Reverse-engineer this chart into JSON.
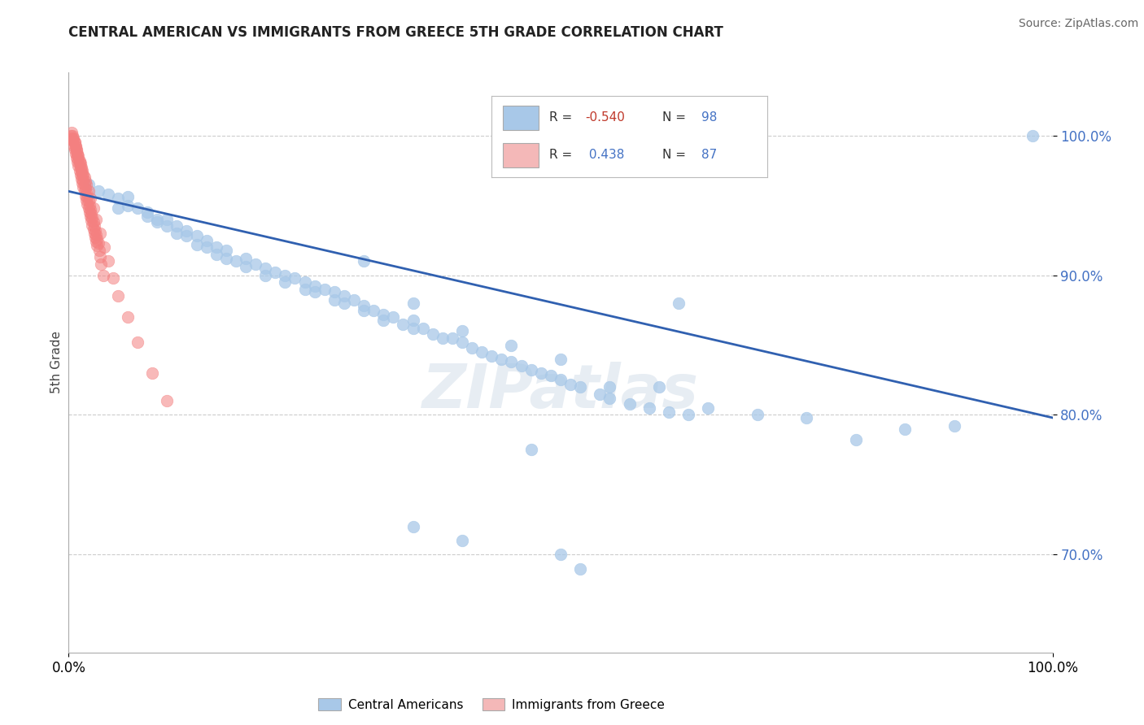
{
  "title": "CENTRAL AMERICAN VS IMMIGRANTS FROM GREECE 5TH GRADE CORRELATION CHART",
  "source": "Source: ZipAtlas.com",
  "ylabel": "5th Grade",
  "xlim": [
    0.0,
    1.0
  ],
  "ylim": [
    0.63,
    1.045
  ],
  "yticks": [
    0.7,
    0.8,
    0.9,
    1.0
  ],
  "ytick_labels": [
    "70.0%",
    "80.0%",
    "90.0%",
    "100.0%"
  ],
  "xticks": [
    0.0,
    1.0
  ],
  "xtick_labels": [
    "0.0%",
    "100.0%"
  ],
  "blue_color": "#a8c8e8",
  "pink_color": "#f48080",
  "trend_line_color": "#3060b0",
  "watermark": "ZIPatlas",
  "trend_x_start": 0.0,
  "trend_x_end": 1.0,
  "trend_y_start": 0.96,
  "trend_y_end": 0.798,
  "blue_scatter_x": [
    0.02,
    0.03,
    0.04,
    0.05,
    0.05,
    0.06,
    0.06,
    0.07,
    0.08,
    0.08,
    0.09,
    0.09,
    0.1,
    0.1,
    0.11,
    0.11,
    0.12,
    0.12,
    0.13,
    0.13,
    0.14,
    0.14,
    0.15,
    0.15,
    0.16,
    0.16,
    0.17,
    0.18,
    0.18,
    0.19,
    0.2,
    0.2,
    0.21,
    0.22,
    0.22,
    0.23,
    0.24,
    0.24,
    0.25,
    0.25,
    0.26,
    0.27,
    0.27,
    0.28,
    0.28,
    0.29,
    0.3,
    0.3,
    0.31,
    0.32,
    0.32,
    0.33,
    0.34,
    0.35,
    0.35,
    0.36,
    0.37,
    0.38,
    0.39,
    0.4,
    0.41,
    0.42,
    0.43,
    0.44,
    0.45,
    0.46,
    0.47,
    0.48,
    0.49,
    0.5,
    0.51,
    0.52,
    0.54,
    0.55,
    0.57,
    0.59,
    0.61,
    0.63,
    0.3,
    0.35,
    0.4,
    0.45,
    0.5,
    0.55,
    0.6,
    0.65,
    0.7,
    0.75,
    0.8,
    0.85,
    0.62,
    0.9,
    0.47,
    0.5,
    0.35,
    0.4,
    0.52,
    0.98
  ],
  "blue_scatter_y": [
    0.965,
    0.96,
    0.958,
    0.955,
    0.948,
    0.956,
    0.95,
    0.948,
    0.945,
    0.942,
    0.94,
    0.938,
    0.94,
    0.935,
    0.935,
    0.93,
    0.932,
    0.928,
    0.928,
    0.922,
    0.925,
    0.92,
    0.92,
    0.915,
    0.918,
    0.912,
    0.91,
    0.912,
    0.906,
    0.908,
    0.905,
    0.9,
    0.902,
    0.9,
    0.895,
    0.898,
    0.895,
    0.89,
    0.892,
    0.888,
    0.89,
    0.888,
    0.882,
    0.885,
    0.88,
    0.882,
    0.878,
    0.875,
    0.875,
    0.872,
    0.868,
    0.87,
    0.865,
    0.868,
    0.862,
    0.862,
    0.858,
    0.855,
    0.855,
    0.852,
    0.848,
    0.845,
    0.842,
    0.84,
    0.838,
    0.835,
    0.832,
    0.83,
    0.828,
    0.825,
    0.822,
    0.82,
    0.815,
    0.812,
    0.808,
    0.805,
    0.802,
    0.8,
    0.91,
    0.88,
    0.86,
    0.85,
    0.84,
    0.82,
    0.82,
    0.805,
    0.8,
    0.798,
    0.782,
    0.79,
    0.88,
    0.792,
    0.775,
    0.7,
    0.72,
    0.71,
    0.69,
    1.0
  ],
  "pink_scatter_x": [
    0.002,
    0.003,
    0.004,
    0.005,
    0.005,
    0.006,
    0.006,
    0.007,
    0.007,
    0.008,
    0.008,
    0.009,
    0.009,
    0.01,
    0.01,
    0.011,
    0.011,
    0.012,
    0.012,
    0.013,
    0.013,
    0.014,
    0.014,
    0.015,
    0.015,
    0.016,
    0.016,
    0.017,
    0.017,
    0.018,
    0.018,
    0.019,
    0.019,
    0.02,
    0.02,
    0.021,
    0.021,
    0.022,
    0.022,
    0.023,
    0.023,
    0.024,
    0.024,
    0.025,
    0.025,
    0.026,
    0.026,
    0.027,
    0.027,
    0.028,
    0.028,
    0.029,
    0.029,
    0.03,
    0.031,
    0.032,
    0.033,
    0.035,
    0.003,
    0.004,
    0.005,
    0.006,
    0.007,
    0.008,
    0.009,
    0.01,
    0.011,
    0.012,
    0.013,
    0.014,
    0.015,
    0.016,
    0.017,
    0.018,
    0.02,
    0.022,
    0.025,
    0.028,
    0.032,
    0.036,
    0.04,
    0.045,
    0.05,
    0.06,
    0.07,
    0.085,
    0.1
  ],
  "pink_scatter_y": [
    1.0,
    0.998,
    0.996,
    0.998,
    0.993,
    0.995,
    0.99,
    0.992,
    0.987,
    0.989,
    0.984,
    0.986,
    0.981,
    0.983,
    0.978,
    0.98,
    0.975,
    0.977,
    0.972,
    0.974,
    0.969,
    0.971,
    0.966,
    0.968,
    0.963,
    0.965,
    0.96,
    0.962,
    0.957,
    0.959,
    0.954,
    0.956,
    0.951,
    0.953,
    0.948,
    0.95,
    0.945,
    0.947,
    0.942,
    0.944,
    0.939,
    0.941,
    0.936,
    0.938,
    0.933,
    0.935,
    0.93,
    0.932,
    0.927,
    0.929,
    0.924,
    0.926,
    0.921,
    0.923,
    0.918,
    0.913,
    0.908,
    0.9,
    1.002,
    1.0,
    0.997,
    0.995,
    0.992,
    0.99,
    0.987,
    0.985,
    0.982,
    0.98,
    0.977,
    0.975,
    0.972,
    0.97,
    0.967,
    0.965,
    0.96,
    0.955,
    0.948,
    0.94,
    0.93,
    0.92,
    0.91,
    0.898,
    0.885,
    0.87,
    0.852,
    0.83,
    0.81
  ]
}
